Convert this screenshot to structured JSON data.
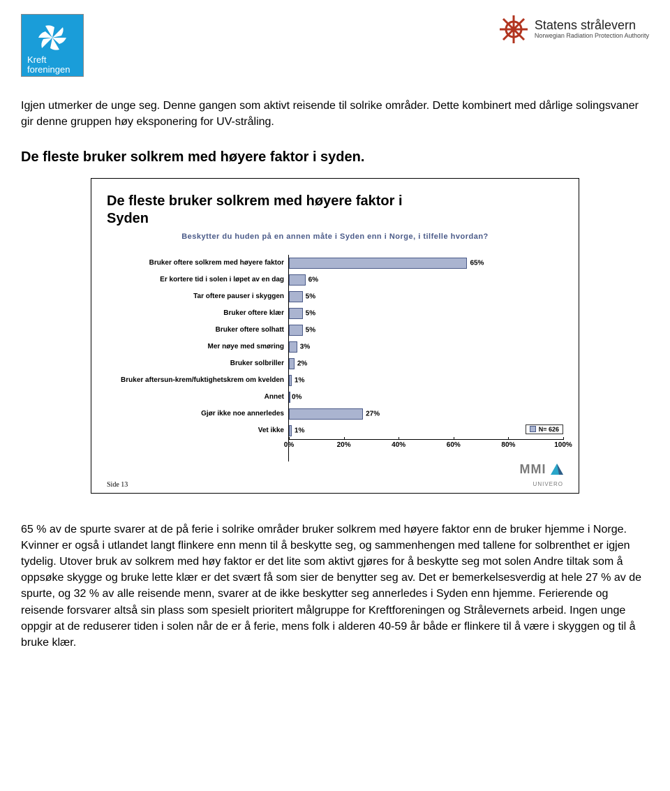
{
  "logos": {
    "left": {
      "line1": "Kreft",
      "line2": "foreningen",
      "bg": "#1a9dd9",
      "fg": "#ffffff"
    },
    "right": {
      "main": "Statens strålevern",
      "sub": "Norwegian Radiation Protection Authority",
      "mark_color": "#b1341f"
    }
  },
  "intro": "Igjen utmerker de unge seg. Denne gangen som aktivt reisende til solrike områder. Dette kombinert med dårlige solingsvaner gir denne gruppen høy eksponering for UV-stråling.",
  "section_title": "De fleste bruker solkrem med høyere faktor i syden.",
  "chart": {
    "title_l1": "De fleste bruker solkrem med høyere faktor i",
    "title_l2": "Syden",
    "subtitle": "Beskytter du huden på en annen måte i Syden enn i Norge, i tilfelle hvordan?",
    "bar_fill": "#aab4d0",
    "bar_border": "#4a5a88",
    "xmax": 100,
    "categories": [
      {
        "label": "Bruker oftere solkrem med høyere faktor",
        "value": 65,
        "disp": "65%"
      },
      {
        "label": "Er kortere tid i solen i løpet av en dag",
        "value": 6,
        "disp": "6%"
      },
      {
        "label": "Tar oftere pauser i skyggen",
        "value": 5,
        "disp": "5%"
      },
      {
        "label": "Bruker oftere klær",
        "value": 5,
        "disp": "5%"
      },
      {
        "label": "Bruker oftere solhatt",
        "value": 5,
        "disp": "5%"
      },
      {
        "label": "Mer nøye med smøring",
        "value": 3,
        "disp": "3%"
      },
      {
        "label": "Bruker solbriller",
        "value": 2,
        "disp": "2%"
      },
      {
        "label": "Bruker aftersun-krem/fuktighetskrem om kvelden",
        "value": 1,
        "disp": "1%"
      },
      {
        "label": "Annet",
        "value": 0,
        "disp": "0%"
      },
      {
        "label": "Gjør ikke noe annerledes",
        "value": 27,
        "disp": "27%"
      },
      {
        "label": "Vet ikke",
        "value": 1,
        "disp": "1%"
      }
    ],
    "xticks": [
      {
        "pos": 0,
        "label": "0%"
      },
      {
        "pos": 20,
        "label": "20%"
      },
      {
        "pos": 40,
        "label": "40%"
      },
      {
        "pos": 60,
        "label": "60%"
      },
      {
        "pos": 80,
        "label": "80%"
      },
      {
        "pos": 100,
        "label": "100%"
      }
    ],
    "n_label": "N= 626",
    "side_label": "Side 13",
    "brand_big": "MMI",
    "brand_small": "UNIVERO"
  },
  "body_text": "65 % av de spurte svarer at de på ferie i solrike områder bruker solkrem med høyere faktor enn de bruker hjemme i Norge. Kvinner er også i utlandet langt flinkere enn menn til å beskytte seg, og sammenhengen med tallene for solbrenthet er igjen tydelig. Utover bruk av solkrem med høy faktor er det lite som aktivt gjøres for å beskytte seg mot solen Andre tiltak som å oppsøke skygge og bruke lette klær er det svært få som sier de benytter seg av. Det er bemerkelsesverdig at hele 27 % av de spurte, og 32 % av alle reisende menn, svarer at de ikke beskytter seg annerledes i Syden enn hjemme. Ferierende og reisende forsvarer altså sin plass som spesielt prioritert målgruppe for Kreftforeningen og Strålevernets arbeid. Ingen unge oppgir at de reduserer tiden i solen når de er å ferie, mens folk i alderen 40-59 år både er flinkere til å være i skyggen og til å bruke klær."
}
